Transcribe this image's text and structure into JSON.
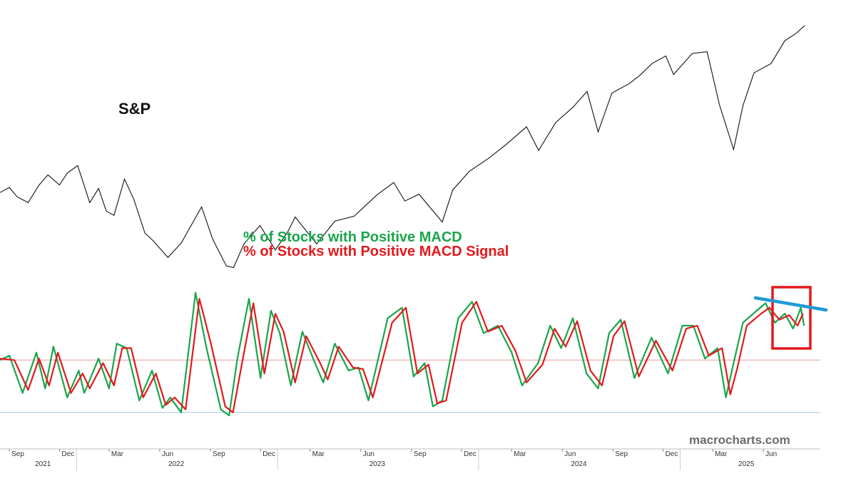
{
  "labels": {
    "sp": "S&P",
    "macd_green": "% of Stocks with Positive MACD",
    "macd_red": "% of Stocks with Positive MACD Signal",
    "watermark": "macrocharts.com"
  },
  "colors": {
    "sp": "#111111",
    "green": "#1aa54a",
    "red": "#e3191c",
    "midline": "#e59a9a",
    "lowline": "#a9c4e4",
    "trend": "#1f9ad6",
    "box": "#e3191c"
  },
  "chart_data": [
    {
      "type": "line",
      "series": [
        {
          "name": "S&P",
          "x": [
            "2021-08-15",
            "2021-09-01",
            "2021-09-15",
            "2021-10-05",
            "2021-10-25",
            "2021-11-10",
            "2021-12-01",
            "2021-12-15",
            "2022-01-03",
            "2022-01-25",
            "2022-02-10",
            "2022-02-24",
            "2022-03-10",
            "2022-03-29",
            "2022-04-15",
            "2022-05-05",
            "2022-05-20",
            "2022-06-16",
            "2022-07-10",
            "2022-08-16",
            "2022-09-05",
            "2022-09-30",
            "2022-10-13",
            "2022-11-01",
            "2022-11-30",
            "2022-12-28",
            "2023-01-20",
            "2023-02-02",
            "2023-03-13",
            "2023-04-15",
            "2023-05-20",
            "2023-06-30",
            "2023-07-31",
            "2023-08-20",
            "2023-09-15",
            "2023-10-27",
            "2023-11-15",
            "2023-12-15",
            "2024-01-20",
            "2024-02-20",
            "2024-03-28",
            "2024-04-19",
            "2024-05-20",
            "2024-06-20",
            "2024-07-16",
            "2024-08-05",
            "2024-08-30",
            "2024-09-30",
            "2024-10-20",
            "2024-11-11",
            "2024-12-06",
            "2024-12-20",
            "2025-01-23",
            "2025-02-19",
            "2025-03-13",
            "2025-04-08",
            "2025-04-25",
            "2025-05-15",
            "2025-06-15",
            "2025-07-10",
            "2025-07-31",
            "2025-08-15"
          ],
          "values": [
            4470,
            4530,
            4420,
            4350,
            4560,
            4680,
            4560,
            4700,
            4790,
            4350,
            4520,
            4250,
            4200,
            4630,
            4390,
            3990,
            3900,
            3700,
            3870,
            4300,
            3920,
            3600,
            3580,
            3860,
            4080,
            3790,
            4010,
            4180,
            3860,
            4130,
            4190,
            4440,
            4590,
            4370,
            4450,
            4120,
            4500,
            4720,
            4880,
            5040,
            5250,
            4970,
            5300,
            5480,
            5670,
            5190,
            5650,
            5760,
            5860,
            6000,
            6090,
            5870,
            6120,
            6140,
            5520,
            4980,
            5500,
            5890,
            6000,
            6270,
            6360,
            6450
          ]
        }
      ]
    },
    {
      "type": "line",
      "series": [
        {
          "name": "% of Stocks with Positive MACD",
          "x": [
            "2021-08-15",
            "2021-09-01",
            "2021-09-25",
            "2021-10-20",
            "2021-11-05",
            "2021-11-20",
            "2021-12-15",
            "2022-01-05",
            "2022-01-15",
            "2022-02-10",
            "2022-03-01",
            "2022-03-15",
            "2022-04-02",
            "2022-04-25",
            "2022-05-18",
            "2022-06-06",
            "2022-06-20",
            "2022-07-10",
            "2022-08-05",
            "2022-08-25",
            "2022-09-20",
            "2022-10-05",
            "2022-10-20",
            "2022-11-10",
            "2022-12-01",
            "2022-12-20",
            "2023-01-05",
            "2023-01-25",
            "2023-02-15",
            "2023-03-10",
            "2023-03-25",
            "2023-04-15",
            "2023-05-10",
            "2023-05-28",
            "2023-06-15",
            "2023-07-20",
            "2023-08-15",
            "2023-09-05",
            "2023-09-25",
            "2023-10-10",
            "2023-10-27",
            "2023-11-25",
            "2023-12-20",
            "2024-01-10",
            "2024-02-05",
            "2024-03-01",
            "2024-03-20",
            "2024-04-18",
            "2024-05-10",
            "2024-05-30",
            "2024-06-20",
            "2024-07-15",
            "2024-08-05",
            "2024-08-25",
            "2024-09-15",
            "2024-10-10",
            "2024-11-10",
            "2024-12-10",
            "2025-01-05",
            "2025-01-25",
            "2025-02-15",
            "2025-03-10",
            "2025-03-25",
            "2025-04-08",
            "2025-04-25",
            "2025-05-20",
            "2025-06-05",
            "2025-06-22",
            "2025-07-10",
            "2025-07-25",
            "2025-08-08",
            "2025-08-14"
          ],
          "values": [
            47,
            50,
            25,
            52,
            28,
            56,
            22,
            40,
            25,
            48,
            28,
            58,
            55,
            20,
            40,
            15,
            22,
            12,
            92,
            55,
            14,
            10,
            48,
            88,
            35,
            80,
            65,
            30,
            66,
            45,
            32,
            58,
            40,
            42,
            20,
            75,
            82,
            36,
            45,
            16,
            20,
            75,
            86,
            65,
            70,
            52,
            30,
            45,
            70,
            55,
            75,
            38,
            28,
            65,
            74,
            35,
            62,
            38,
            70,
            70,
            48,
            55,
            22,
            45,
            72,
            80,
            85,
            72,
            78,
            68,
            82,
            70
          ],
          "color": "#1aa54a"
        },
        {
          "name": "% of Stocks with Positive MACD Signal",
          "x": [
            "2021-08-15",
            "2021-09-10",
            "2021-10-05",
            "2021-10-25",
            "2021-11-12",
            "2021-11-28",
            "2021-12-22",
            "2022-01-12",
            "2022-01-25",
            "2022-02-18",
            "2022-03-10",
            "2022-03-25",
            "2022-04-10",
            "2022-05-02",
            "2022-05-25",
            "2022-06-12",
            "2022-06-28",
            "2022-07-18",
            "2022-08-12",
            "2022-09-02",
            "2022-09-28",
            "2022-10-12",
            "2022-10-28",
            "2022-11-18",
            "2022-12-08",
            "2022-12-28",
            "2023-01-12",
            "2023-02-02",
            "2023-02-22",
            "2023-03-18",
            "2023-04-02",
            "2023-04-22",
            "2023-05-18",
            "2023-06-05",
            "2023-06-23",
            "2023-07-28",
            "2023-08-22",
            "2023-09-12",
            "2023-10-02",
            "2023-10-18",
            "2023-11-03",
            "2023-12-02",
            "2023-12-28",
            "2024-01-18",
            "2024-02-12",
            "2024-03-08",
            "2024-03-28",
            "2024-04-26",
            "2024-05-18",
            "2024-06-07",
            "2024-06-28",
            "2024-07-22",
            "2024-08-12",
            "2024-09-02",
            "2024-09-22",
            "2024-10-18",
            "2024-11-18",
            "2024-12-18",
            "2025-01-12",
            "2025-02-01",
            "2025-02-22",
            "2025-03-18",
            "2025-04-02",
            "2025-04-15",
            "2025-05-02",
            "2025-05-28",
            "2025-06-12",
            "2025-06-30",
            "2025-07-18",
            "2025-08-02",
            "2025-08-12"
          ],
          "values": [
            48,
            47,
            27,
            48,
            30,
            52,
            25,
            38,
            28,
            45,
            30,
            55,
            55,
            22,
            38,
            17,
            22,
            14,
            88,
            58,
            16,
            12,
            44,
            85,
            38,
            78,
            66,
            32,
            63,
            46,
            34,
            56,
            42,
            41,
            22,
            72,
            82,
            38,
            44,
            18,
            20,
            72,
            86,
            66,
            70,
            53,
            32,
            44,
            68,
            56,
            73,
            40,
            30,
            63,
            73,
            36,
            60,
            40,
            68,
            70,
            50,
            55,
            24,
            42,
            70,
            78,
            82,
            74,
            77,
            70,
            78
          ],
          "color": "#e3191c"
        }
      ],
      "reference_lines": [
        47,
        12
      ]
    }
  ],
  "x_axis": {
    "months": [
      {
        "label": "Sep",
        "date": "2021-09-01"
      },
      {
        "label": "Dec",
        "date": "2021-12-01"
      },
      {
        "label": "Mar",
        "date": "2022-03-01"
      },
      {
        "label": "Jun",
        "date": "2022-06-01"
      },
      {
        "label": "Sep",
        "date": "2022-09-01"
      },
      {
        "label": "Dec",
        "date": "2022-12-01"
      },
      {
        "label": "Mar",
        "date": "2023-03-01"
      },
      {
        "label": "Jun",
        "date": "2023-06-01"
      },
      {
        "label": "Sep",
        "date": "2023-09-01"
      },
      {
        "label": "Dec",
        "date": "2023-12-01"
      },
      {
        "label": "Mar",
        "date": "2024-03-01"
      },
      {
        "label": "Jun",
        "date": "2024-06-01"
      },
      {
        "label": "Sep",
        "date": "2024-09-01"
      },
      {
        "label": "Dec",
        "date": "2024-12-01"
      },
      {
        "label": "Mar",
        "date": "2025-03-01"
      },
      {
        "label": "Jun",
        "date": "2025-06-01"
      }
    ],
    "years": [
      {
        "label": "2021",
        "date": "2021-11-01"
      },
      {
        "label": "2022",
        "date": "2022-07-01"
      },
      {
        "label": "2023",
        "date": "2023-07-01"
      },
      {
        "label": "2024",
        "date": "2024-07-01"
      },
      {
        "label": "2025",
        "date": "2025-05-01"
      }
    ],
    "year_boundaries": [
      "2022-01-01",
      "2023-01-01",
      "2024-01-01",
      "2025-01-01"
    ]
  }
}
